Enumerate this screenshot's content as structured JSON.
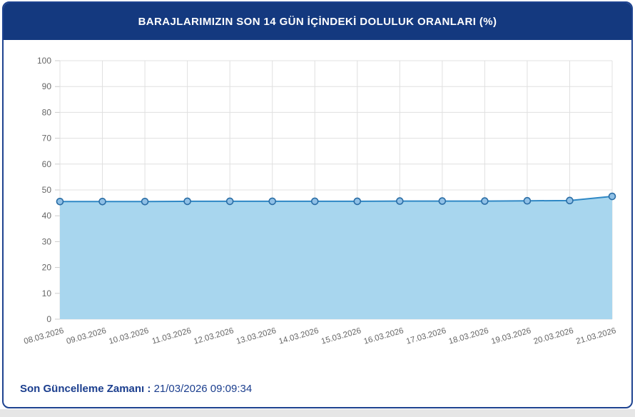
{
  "header": {
    "title": "BARAJLARIMIZIN SON 14 GÜN İÇİNDEKİ DOLULUK ORANLARI (%)",
    "bg_color": "#14397f",
    "text_color": "#ffffff"
  },
  "chart_data": {
    "type": "area",
    "title": "BARAJLARIMIZIN SON 14 GÜN İÇİNDEKİ DOLULUK ORANLARI (%)",
    "categories": [
      "08.03.2026",
      "09.03.2026",
      "10.03.2026",
      "11.03.2026",
      "12.03.2026",
      "13.03.2026",
      "14.03.2026",
      "15.03.2026",
      "16.03.2026",
      "17.03.2026",
      "18.03.2026",
      "19.03.2026",
      "20.03.2026",
      "21.03.2026"
    ],
    "values": [
      45.5,
      45.5,
      45.5,
      45.6,
      45.6,
      45.6,
      45.6,
      45.6,
      45.7,
      45.7,
      45.7,
      45.8,
      45.9,
      47.5
    ],
    "xlabel": "",
    "ylabel": "",
    "ylim": [
      0,
      100
    ],
    "ytick_step": 10,
    "grid": true,
    "legend": false,
    "line_color": "#2f88c5",
    "area_color": "#a8d6ee",
    "marker_fill": "#8fc0e6",
    "marker_stroke": "#2a6da5",
    "grid_color": "#e0e0e0",
    "tick_label_color": "#666666"
  },
  "footer": {
    "label": "Son Güncelleme Zamanı",
    "separator": " : ",
    "value": "21/03/2026 09:09:34"
  }
}
